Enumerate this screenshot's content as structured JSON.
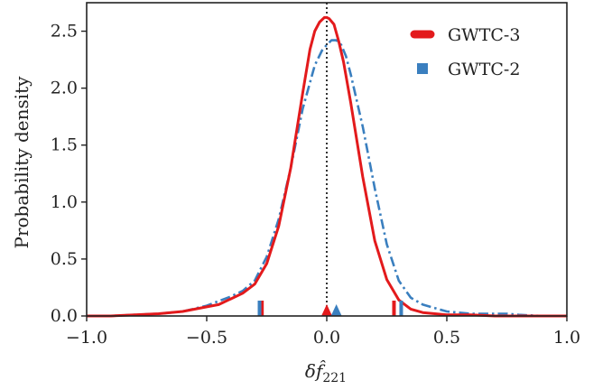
{
  "chart_data": {
    "type": "line",
    "title": "",
    "xlabel": "δf̂221",
    "ylabel": "Probability density",
    "xlim": [
      -1.0,
      1.0
    ],
    "ylim": [
      0.0,
      2.75
    ],
    "x_ticks": [
      "−1.0",
      "−0.5",
      "0.0",
      "0.5",
      "1.0"
    ],
    "x_tick_values": [
      -1.0,
      -0.5,
      0.0,
      0.5,
      1.0
    ],
    "y_ticks": [
      "0.0",
      "0.5",
      "1.0",
      "1.5",
      "2.0",
      "2.5"
    ],
    "y_tick_values": [
      0.0,
      0.5,
      1.0,
      1.5,
      2.0,
      2.5
    ],
    "grid": false,
    "legend_position": "top-right",
    "reference_line": {
      "x": 0.0,
      "style": "dotted",
      "color": "#000000"
    },
    "series": [
      {
        "name": "GWTC-3",
        "color": "#e31a1c",
        "style": "solid",
        "x": [
          -1.0,
          -0.9,
          -0.8,
          -0.7,
          -0.6,
          -0.5,
          -0.45,
          -0.4,
          -0.35,
          -0.3,
          -0.25,
          -0.2,
          -0.15,
          -0.1,
          -0.07,
          -0.05,
          -0.03,
          -0.01,
          0.0,
          0.01,
          0.03,
          0.05,
          0.07,
          0.1,
          0.15,
          0.2,
          0.25,
          0.3,
          0.35,
          0.4,
          0.5,
          0.6,
          0.7,
          0.8,
          0.9,
          1.0
        ],
        "y": [
          0.0,
          0.0,
          0.01,
          0.02,
          0.04,
          0.08,
          0.1,
          0.15,
          0.2,
          0.28,
          0.46,
          0.79,
          1.3,
          1.96,
          2.34,
          2.5,
          2.58,
          2.62,
          2.62,
          2.61,
          2.56,
          2.41,
          2.23,
          1.87,
          1.22,
          0.66,
          0.32,
          0.14,
          0.06,
          0.03,
          0.01,
          0.01,
          0.0,
          0.0,
          0.0,
          0.0
        ],
        "quantile_markers": [
          -0.27,
          0.28
        ],
        "median": 0.0
      },
      {
        "name": "GWTC-2",
        "color": "#3a7fbf",
        "style": "dashdot",
        "x": [
          -1.0,
          -0.9,
          -0.8,
          -0.7,
          -0.6,
          -0.5,
          -0.4,
          -0.35,
          -0.3,
          -0.25,
          -0.2,
          -0.15,
          -0.1,
          -0.05,
          -0.02,
          0.0,
          0.02,
          0.04,
          0.06,
          0.08,
          0.1,
          0.15,
          0.2,
          0.25,
          0.3,
          0.35,
          0.4,
          0.45,
          0.5,
          0.6,
          0.7,
          0.75,
          0.8,
          0.9,
          1.0
        ],
        "y": [
          0.0,
          0.0,
          0.01,
          0.02,
          0.04,
          0.09,
          0.17,
          0.22,
          0.31,
          0.52,
          0.85,
          1.3,
          1.82,
          2.2,
          2.33,
          2.38,
          2.42,
          2.42,
          2.38,
          2.28,
          2.12,
          1.66,
          1.12,
          0.63,
          0.31,
          0.16,
          0.1,
          0.07,
          0.04,
          0.02,
          0.02,
          0.02,
          0.01,
          0.0,
          0.0
        ],
        "quantile_markers": [
          -0.28,
          0.31
        ],
        "median": 0.04
      }
    ]
  }
}
